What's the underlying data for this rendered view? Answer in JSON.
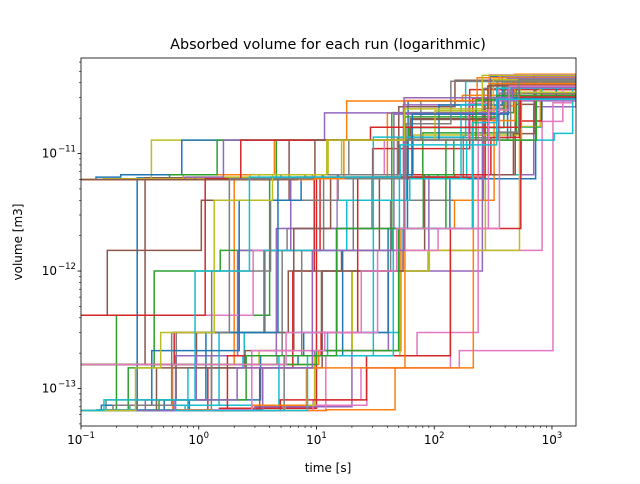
{
  "chart_data": {
    "type": "line",
    "title": "Absorbed volume for each run (logarithmic)",
    "xlabel": "time [s]",
    "ylabel": "volume [m3]",
    "xscale": "log",
    "yscale": "log",
    "xlim": [
      0.1,
      1600
    ],
    "ylim": [
      4.8e-14,
      6.5e-11
    ],
    "xticks": [
      {
        "value": 0.1,
        "base": "10",
        "exp": "−1"
      },
      {
        "value": 1,
        "base": "10",
        "exp": "0"
      },
      {
        "value": 10,
        "base": "10",
        "exp": "1"
      },
      {
        "value": 100,
        "base": "10",
        "exp": "2"
      },
      {
        "value": 1000,
        "base": "10",
        "exp": "3"
      }
    ],
    "yticks": [
      {
        "value": 1e-13,
        "base": "10",
        "exp": "−13"
      },
      {
        "value": 1e-12,
        "base": "10",
        "exp": "−12"
      },
      {
        "value": 1e-11,
        "base": "10",
        "exp": "−11"
      }
    ],
    "grid": false,
    "legend": "none",
    "series_count": 60,
    "colors": [
      "#1f77b4",
      "#ff7f0e",
      "#2ca02c",
      "#d62728",
      "#9467bd",
      "#8c564b",
      "#e377c2",
      "#7f7f7f",
      "#bcbd22",
      "#17becf"
    ],
    "series": [
      {
        "x": [
          0.1,
          0.3,
          5,
          60,
          300,
          1600
        ],
        "y": [
          6.5e-14,
          6.2e-12,
          6.6e-12,
          2.8e-11,
          4.5e-11,
          4.6e-11
        ]
      },
      {
        "x": [
          0.1,
          0.6,
          2,
          40,
          400,
          1600
        ],
        "y": [
          6.5e-14,
          1.6e-13,
          6.1e-12,
          2.2e-11,
          4e-11,
          4.3e-11
        ]
      },
      {
        "x": [
          0.1,
          0.2,
          4,
          80,
          500,
          1600
        ],
        "y": [
          6.5e-14,
          4.2e-13,
          6.3e-12,
          1.5e-11,
          3.8e-11,
          4e-11
        ]
      },
      {
        "x": [
          0.1,
          1.5,
          10,
          30,
          200,
          1600
        ],
        "y": [
          6.5e-14,
          6.8e-14,
          6.2e-12,
          1.1e-11,
          3.5e-11,
          4.4e-11
        ]
      },
      {
        "x": [
          0.1,
          3,
          20,
          90,
          700,
          1600
        ],
        "y": [
          6.5e-14,
          7e-14,
          1e-12,
          6.6e-12,
          2.5e-11,
          3.9e-11
        ]
      },
      {
        "x": [
          0.1,
          0.35,
          8,
          50,
          150,
          1600
        ],
        "y": [
          1.6e-13,
          6.2e-12,
          6.6e-12,
          2.5e-11,
          4.2e-11,
          4.7e-11
        ]
      }
    ]
  }
}
